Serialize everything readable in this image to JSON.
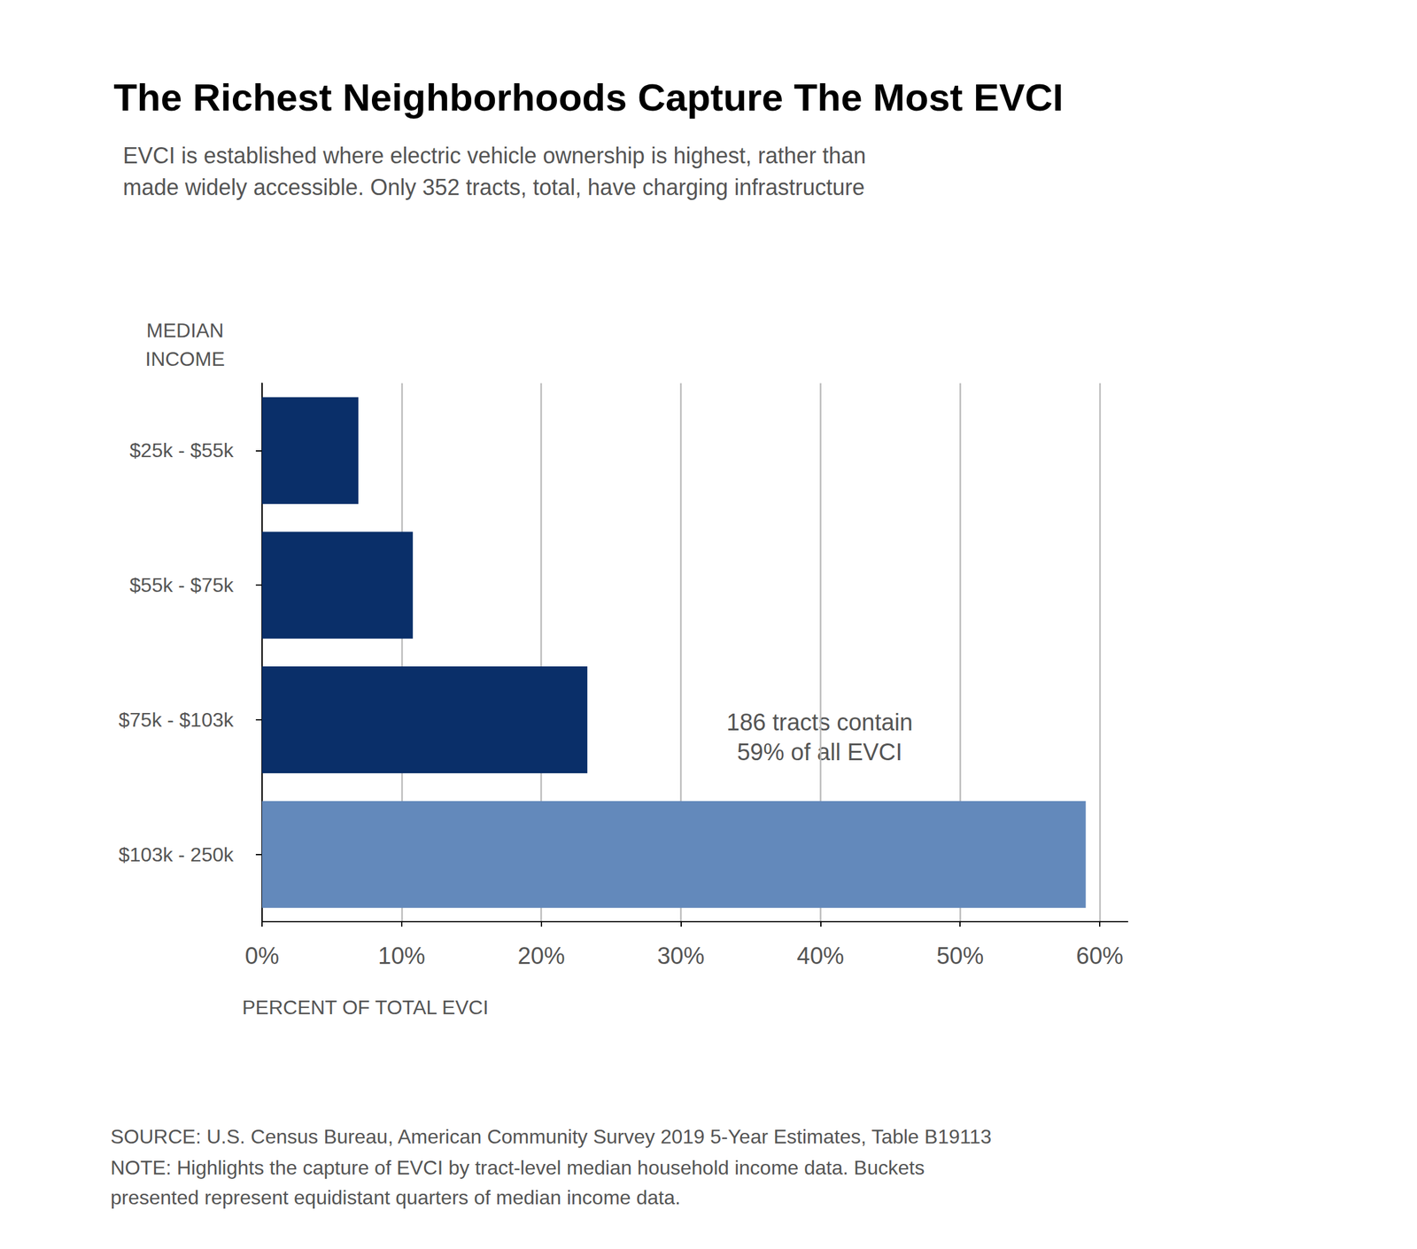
{
  "chart_data": {
    "type": "bar",
    "orientation": "horizontal",
    "title": "The Richest Neighborhoods Capture The Most EVCI",
    "subtitle": "EVCI is established where electric vehicle ownership is highest, rather than\nmade widely accessible. Only 352 tracts, total, have charging infrastructure",
    "y_label": "MEDIAN\nINCOME",
    "x_label": "PERCENT OF TOTAL EVCI",
    "categories": [
      "$25k - $55k",
      "$55k - $75k",
      "$75k - $103k",
      "$103k - 250k"
    ],
    "values": [
      6.9,
      10.8,
      23.3,
      59
    ],
    "colors": [
      "#0a2f69",
      "#0a2f69",
      "#0a2f69",
      "#6389bb"
    ],
    "xlim": [
      0,
      62
    ],
    "xticks": [
      {
        "value": 0,
        "label": "0%"
      },
      {
        "value": 10,
        "label": "10%"
      },
      {
        "value": 20,
        "label": "20%"
      },
      {
        "value": 30,
        "label": "30%"
      },
      {
        "value": 40,
        "label": "40%"
      },
      {
        "value": 50,
        "label": "50%"
      },
      {
        "value": 60,
        "label": "60%"
      }
    ],
    "grid": true,
    "annotation": "186 tracts contain\n59% of all EVCI",
    "source": "SOURCE: U.S. Census Bureau, American Community Survey 2019 5-Year Estimates, Table B19113",
    "note": "NOTE: Highlights the capture of EVCI by tract-level median household income data. Buckets\npresented represent equidistant quarters of median income data."
  }
}
